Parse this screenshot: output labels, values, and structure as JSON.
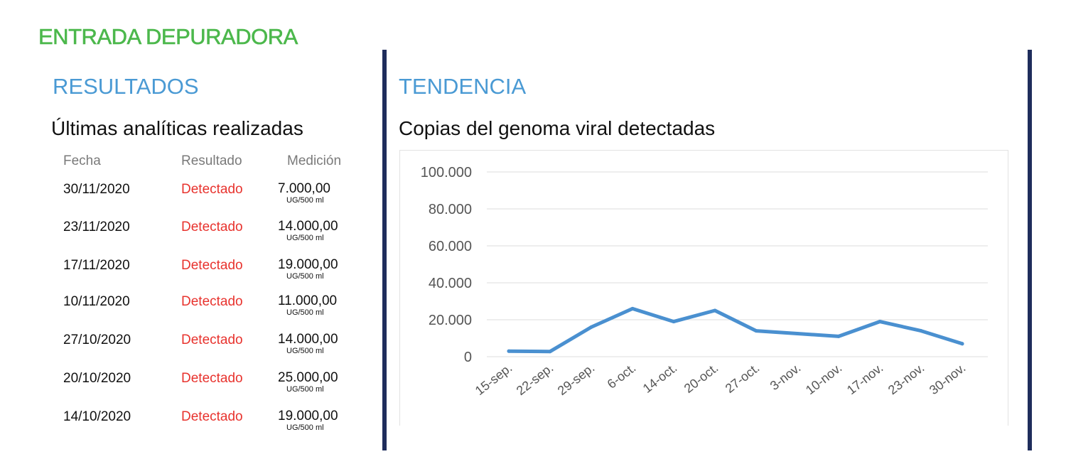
{
  "page_title": "ENTRADA DEPURADORA",
  "results": {
    "heading": "RESULTADOS",
    "subheading": "Últimas analíticas realizadas",
    "columns": [
      "Fecha",
      "Resultado",
      "Medición"
    ],
    "rows": [
      {
        "fecha": "30/11/2020",
        "resultado": "Detectado",
        "medicion": "7.000,00",
        "unit": "UG/500 ml"
      },
      {
        "fecha": "23/11/2020",
        "resultado": "Detectado",
        "medicion": "14.000,00",
        "unit": "UG/500 ml"
      },
      {
        "fecha": "17/11/2020",
        "resultado": "Detectado",
        "medicion": "19.000,00",
        "unit": "UG/500 ml"
      },
      {
        "fecha": "10/11/2020",
        "resultado": "Detectado",
        "medicion": "11.000,00",
        "unit": "UG/500 ml"
      },
      {
        "fecha": "27/10/2020",
        "resultado": "Detectado",
        "medicion": "14.000,00",
        "unit": "UG/500 ml"
      },
      {
        "fecha": "20/10/2020",
        "resultado": "Detectado",
        "medicion": "25.000,00",
        "unit": "UG/500 ml"
      },
      {
        "fecha": "14/10/2020",
        "resultado": "Detectado",
        "medicion": "19.000,00",
        "unit": "UG/500 ml"
      }
    ]
  },
  "trend": {
    "heading": "TENDENCIA",
    "subheading": "Copias del genoma viral detectadas"
  },
  "colors": {
    "title_green": "#4cb84c",
    "heading_blue": "#4a9ad4",
    "detected_red": "#e8332e",
    "divider_navy": "#1f2d5c",
    "line_blue": "#4a90d0",
    "gridline": "#dddddd"
  },
  "chart_data": {
    "type": "line",
    "title": "",
    "xlabel": "",
    "ylabel": "",
    "categories": [
      "15-sep.",
      "22-sep.",
      "29-sep.",
      "6-oct.",
      "14-oct.",
      "20-oct.",
      "27-oct.",
      "3-nov.",
      "10-nov.",
      "17-nov.",
      "23-nov.",
      "30-nov."
    ],
    "values": [
      3000,
      2800,
      16000,
      26000,
      19000,
      25000,
      14000,
      12500,
      11000,
      19000,
      14000,
      7000
    ],
    "ylim": [
      0,
      100000
    ],
    "yticks": [
      0,
      20000,
      40000,
      60000,
      80000,
      100000
    ],
    "ytick_labels": [
      "0",
      "20.000",
      "40.000",
      "60.000",
      "80.000",
      "100.000"
    ],
    "grid": true,
    "legend": "none"
  }
}
